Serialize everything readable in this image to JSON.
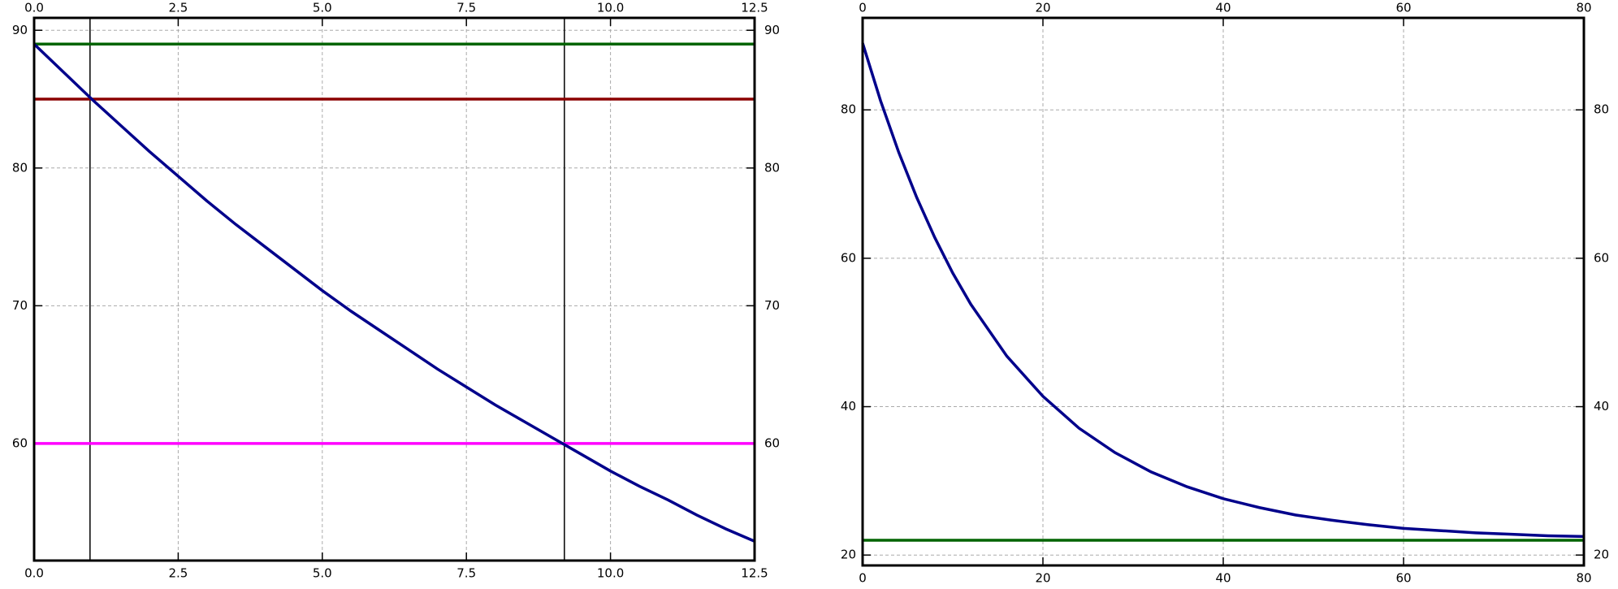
{
  "chart_data": [
    {
      "type": "line",
      "xlim": [
        0,
        12.5
      ],
      "ylim": [
        51.5,
        90.9
      ],
      "xticks": [
        {
          "value": 0,
          "label": "0.0"
        },
        {
          "value": 2.5,
          "label": "2.5"
        },
        {
          "value": 5,
          "label": "5.0"
        },
        {
          "value": 7.5,
          "label": "7.5"
        },
        {
          "value": 10,
          "label": "10.0"
        },
        {
          "value": 12.5,
          "label": "12.5"
        }
      ],
      "yticks": [
        60,
        70,
        80,
        90
      ],
      "grid": true,
      "x": [
        0,
        0.5,
        1,
        1.5,
        2,
        2.5,
        3,
        3.5,
        4,
        4.5,
        5,
        5.5,
        6,
        6.5,
        7,
        7.5,
        8,
        8.5,
        9,
        9.5,
        10,
        10.5,
        11,
        11.5,
        12,
        12.5
      ],
      "series": [
        {
          "color": "#00008b",
          "values": [
            89.0,
            87.0,
            85.0,
            83.1,
            81.2,
            79.4,
            77.6,
            75.9,
            74.3,
            72.7,
            71.1,
            69.6,
            68.2,
            66.8,
            65.4,
            64.1,
            62.8,
            61.6,
            60.4,
            59.2,
            58.0,
            56.9,
            55.9,
            54.8,
            53.8,
            52.9
          ]
        }
      ],
      "hlines": [
        {
          "value": 89,
          "color": "#006400"
        },
        {
          "value": 85,
          "color": "#8b0000"
        },
        {
          "value": 60,
          "color": "#ff00ff"
        }
      ],
      "vlines": [
        {
          "value": 0.97,
          "color": "#000000"
        },
        {
          "value": 9.2,
          "color": "#000000"
        }
      ]
    },
    {
      "type": "line",
      "xlim": [
        0,
        80
      ],
      "ylim": [
        18.6,
        92.4
      ],
      "xticks": [
        0,
        20,
        40,
        60,
        80
      ],
      "yticks": [
        20,
        40,
        60,
        80
      ],
      "grid": true,
      "x": [
        0,
        2,
        4,
        6,
        8,
        10,
        12,
        16,
        20,
        24,
        28,
        32,
        36,
        40,
        44,
        48,
        52,
        56,
        60,
        64,
        68,
        72,
        76,
        80
      ],
      "series": [
        {
          "color": "#00008b",
          "values": [
            89.0,
            81.2,
            74.3,
            68.2,
            62.8,
            58.0,
            53.8,
            46.8,
            41.4,
            37.1,
            33.8,
            31.2,
            29.2,
            27.6,
            26.4,
            25.4,
            24.7,
            24.1,
            23.6,
            23.3,
            23.0,
            22.8,
            22.6,
            22.5
          ]
        }
      ],
      "hlines": [
        {
          "value": 22,
          "color": "#006400"
        }
      ],
      "vlines": []
    }
  ]
}
